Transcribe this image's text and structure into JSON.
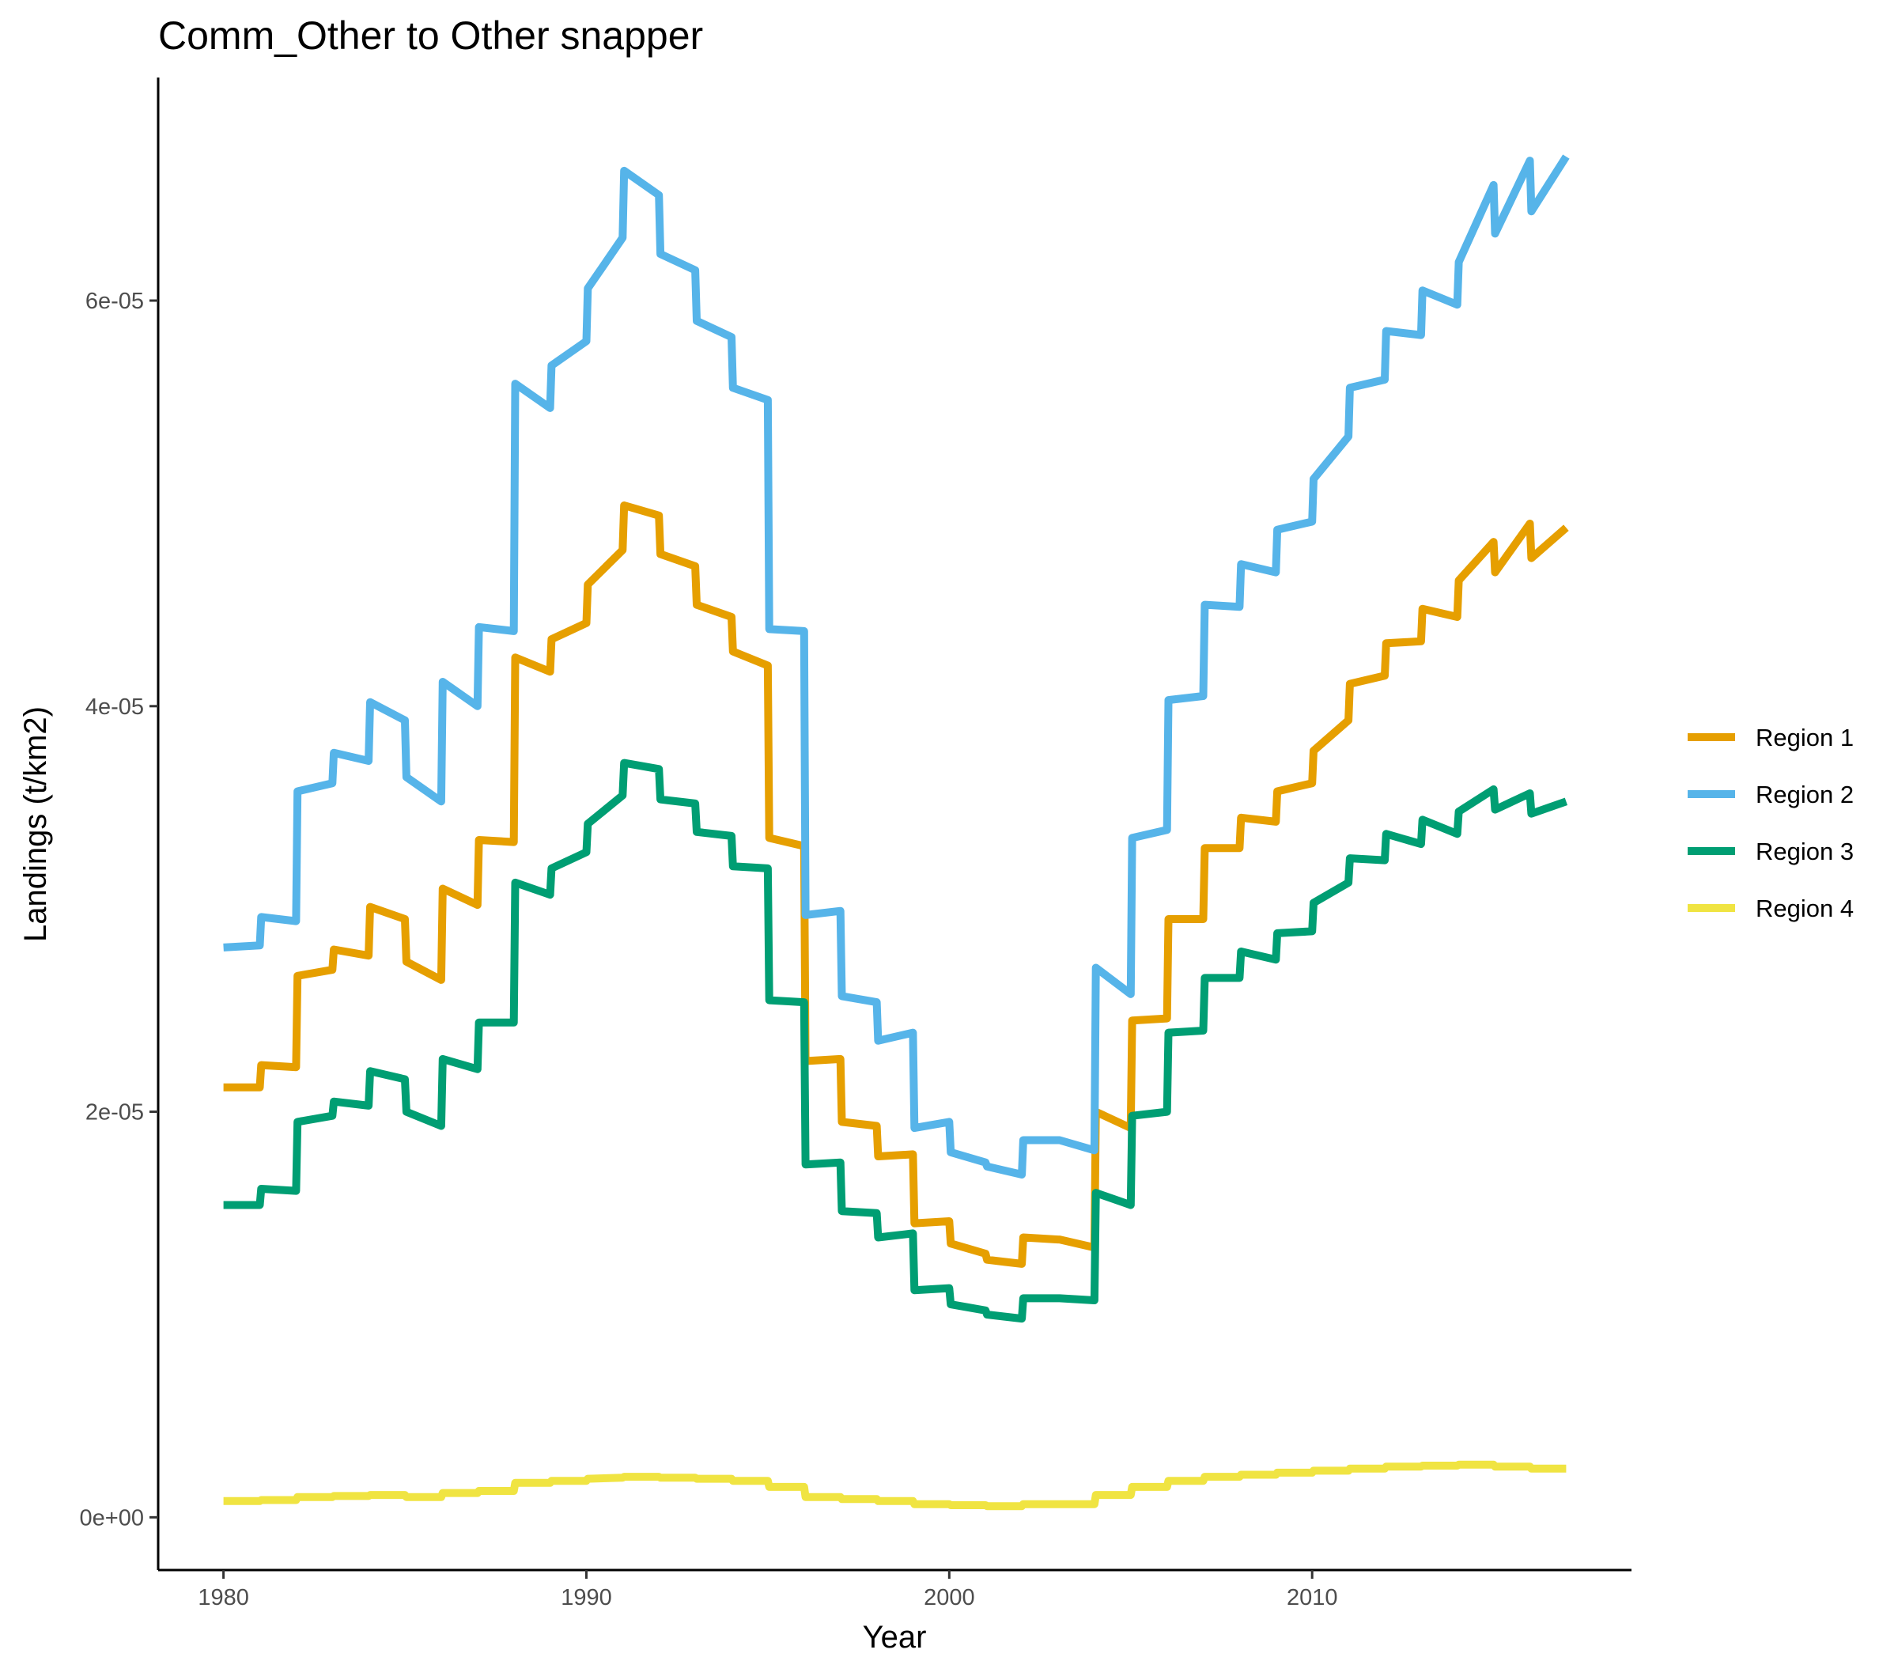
{
  "chart_data": {
    "type": "line",
    "title": "Comm_Other to Other snapper",
    "xlabel": "Year",
    "ylabel": "Landings (t/km2)",
    "xlim": [
      1978.2,
      2018.8
    ],
    "ylim": [
      -2.6e-06,
      7.1e-05
    ],
    "x_ticks": [
      1980,
      1990,
      2000,
      2010
    ],
    "x_tick_labels": [
      "1980",
      "1990",
      "2000",
      "2010"
    ],
    "y_ticks": [
      0,
      2e-05,
      4e-05,
      6e-05
    ],
    "y_tick_labels": [
      "0e+00",
      "2e-05",
      "4e-05",
      "6e-05"
    ],
    "grid": false,
    "legend_position": "right",
    "series": [
      {
        "name": "Region 1",
        "color": "#E69F00",
        "x": [
          1980.0,
          1981.0,
          1981.04,
          1982.0,
          1982.04,
          1983.0,
          1983.04,
          1984.0,
          1984.04,
          1985.0,
          1985.04,
          1986.0,
          1986.04,
          1987.0,
          1987.04,
          1988.0,
          1988.04,
          1989.0,
          1989.04,
          1990.0,
          1990.04,
          1991.0,
          1991.04,
          1992.0,
          1992.04,
          1993.0,
          1993.04,
          1994.0,
          1994.04,
          1995.0,
          1995.04,
          1996.0,
          1996.04,
          1997.0,
          1997.04,
          1998.0,
          1998.04,
          1999.0,
          1999.04,
          2000.0,
          2000.04,
          2001.0,
          2001.04,
          2002.0,
          2002.04,
          2003.0,
          2003.04,
          2004.0,
          2004.04,
          2005.0,
          2005.04,
          2006.0,
          2006.04,
          2007.0,
          2007.04,
          2008.0,
          2008.04,
          2009.0,
          2009.04,
          2010.0,
          2010.04,
          2011.0,
          2011.04,
          2012.0,
          2012.04,
          2013.0,
          2013.04,
          2014.0,
          2014.04,
          2015.0,
          2015.04,
          2016.0,
          2016.04,
          2017.0
        ],
        "y": [
          2.12e-05,
          2.12e-05,
          2.23e-05,
          2.22e-05,
          2.67e-05,
          2.7e-05,
          2.8e-05,
          2.77e-05,
          3.01e-05,
          2.95e-05,
          2.74e-05,
          2.65e-05,
          3.1e-05,
          3.02e-05,
          3.34e-05,
          3.33e-05,
          4.24e-05,
          4.17e-05,
          4.33e-05,
          4.41e-05,
          4.6e-05,
          4.77e-05,
          4.99e-05,
          4.94e-05,
          4.75e-05,
          4.69e-05,
          4.5e-05,
          4.44e-05,
          4.27e-05,
          4.2e-05,
          3.35e-05,
          3.31e-05,
          2.25e-05,
          2.26e-05,
          1.95e-05,
          1.93e-05,
          1.78e-05,
          1.79e-05,
          1.45e-05,
          1.46e-05,
          1.35e-05,
          1.3e-05,
          1.27e-05,
          1.25e-05,
          1.38e-05,
          1.37e-05,
          1.37e-05,
          1.33e-05,
          2e-05,
          1.92e-05,
          2.45e-05,
          2.46e-05,
          2.95e-05,
          2.95e-05,
          3.3e-05,
          3.3e-05,
          3.45e-05,
          3.43e-05,
          3.58e-05,
          3.62e-05,
          3.78e-05,
          3.93e-05,
          4.11e-05,
          4.15e-05,
          4.31e-05,
          4.32e-05,
          4.48e-05,
          4.44e-05,
          4.62e-05,
          4.81e-05,
          4.66e-05,
          4.9e-05,
          4.73e-05,
          4.88e-05
        ]
      },
      {
        "name": "Region 2",
        "color": "#56B4E9",
        "x": [
          1980.0,
          1981.0,
          1981.04,
          1982.0,
          1982.04,
          1983.0,
          1983.04,
          1984.0,
          1984.04,
          1985.0,
          1985.04,
          1986.0,
          1986.04,
          1987.0,
          1987.04,
          1988.0,
          1988.04,
          1989.0,
          1989.04,
          1990.0,
          1990.04,
          1991.0,
          1991.04,
          1992.0,
          1992.04,
          1993.0,
          1993.04,
          1994.0,
          1994.04,
          1995.0,
          1995.04,
          1996.0,
          1996.04,
          1997.0,
          1997.04,
          1998.0,
          1998.04,
          1999.0,
          1999.04,
          2000.0,
          2000.04,
          2001.0,
          2001.04,
          2002.0,
          2002.04,
          2003.0,
          2003.04,
          2004.0,
          2004.04,
          2005.0,
          2005.04,
          2006.0,
          2006.04,
          2007.0,
          2007.04,
          2008.0,
          2008.04,
          2009.0,
          2009.04,
          2010.0,
          2010.04,
          2011.0,
          2011.04,
          2012.0,
          2012.04,
          2013.0,
          2013.04,
          2014.0,
          2014.04,
          2015.0,
          2015.04,
          2016.0,
          2016.04,
          2017.0
        ],
        "y": [
          2.81e-05,
          2.82e-05,
          2.96e-05,
          2.94e-05,
          3.58e-05,
          3.62e-05,
          3.77e-05,
          3.73e-05,
          4.02e-05,
          3.93e-05,
          3.65e-05,
          3.53e-05,
          4.12e-05,
          4e-05,
          4.39e-05,
          4.37e-05,
          5.59e-05,
          5.47e-05,
          5.68e-05,
          5.8e-05,
          6.06e-05,
          6.31e-05,
          6.64e-05,
          6.52e-05,
          6.23e-05,
          6.15e-05,
          5.9e-05,
          5.82e-05,
          5.57e-05,
          5.51e-05,
          4.38e-05,
          4.37e-05,
          2.97e-05,
          2.99e-05,
          2.57e-05,
          2.54e-05,
          2.35e-05,
          2.39e-05,
          1.92e-05,
          1.95e-05,
          1.8e-05,
          1.75e-05,
          1.73e-05,
          1.69e-05,
          1.86e-05,
          1.86e-05,
          1.86e-05,
          1.81e-05,
          2.71e-05,
          2.58e-05,
          3.35e-05,
          3.39e-05,
          4.03e-05,
          4.05e-05,
          4.5e-05,
          4.49e-05,
          4.7e-05,
          4.66e-05,
          4.87e-05,
          4.91e-05,
          5.12e-05,
          5.33e-05,
          5.57e-05,
          5.61e-05,
          5.85e-05,
          5.83e-05,
          6.05e-05,
          5.98e-05,
          6.19e-05,
          6.57e-05,
          6.33e-05,
          6.69e-05,
          6.44e-05,
          6.71e-05
        ]
      },
      {
        "name": "Region 3",
        "color": "#009E73",
        "x": [
          1980.0,
          1981.0,
          1981.04,
          1982.0,
          1982.04,
          1983.0,
          1983.04,
          1984.0,
          1984.04,
          1985.0,
          1985.04,
          1986.0,
          1986.04,
          1987.0,
          1987.04,
          1988.0,
          1988.04,
          1989.0,
          1989.04,
          1990.0,
          1990.04,
          1991.0,
          1991.04,
          1992.0,
          1992.04,
          1993.0,
          1993.04,
          1994.0,
          1994.04,
          1995.0,
          1995.04,
          1996.0,
          1996.04,
          1997.0,
          1997.04,
          1998.0,
          1998.04,
          1999.0,
          1999.04,
          2000.0,
          2000.04,
          2001.0,
          2001.04,
          2002.0,
          2002.04,
          2003.0,
          2003.04,
          2004.0,
          2004.04,
          2005.0,
          2005.04,
          2006.0,
          2006.04,
          2007.0,
          2007.04,
          2008.0,
          2008.04,
          2009.0,
          2009.04,
          2010.0,
          2010.04,
          2011.0,
          2011.04,
          2012.0,
          2012.04,
          2013.0,
          2013.04,
          2014.0,
          2014.04,
          2015.0,
          2015.04,
          2016.0,
          2016.04,
          2017.0
        ],
        "y": [
          1.54e-05,
          1.54e-05,
          1.62e-05,
          1.61e-05,
          1.95e-05,
          1.98e-05,
          2.05e-05,
          2.03e-05,
          2.2e-05,
          2.16e-05,
          2e-05,
          1.93e-05,
          2.26e-05,
          2.21e-05,
          2.44e-05,
          2.44e-05,
          3.13e-05,
          3.07e-05,
          3.2e-05,
          3.28e-05,
          3.42e-05,
          3.56e-05,
          3.72e-05,
          3.69e-05,
          3.54e-05,
          3.52e-05,
          3.38e-05,
          3.36e-05,
          3.21e-05,
          3.2e-05,
          2.55e-05,
          2.54e-05,
          1.74e-05,
          1.75e-05,
          1.51e-05,
          1.5e-05,
          1.38e-05,
          1.4e-05,
          1.12e-05,
          1.13e-05,
          1.05e-05,
          1.02e-05,
          1e-05,
          9.8e-06,
          1.08e-05,
          1.08e-05,
          1.08e-05,
          1.07e-05,
          1.6e-05,
          1.54e-05,
          1.98e-05,
          2e-05,
          2.39e-05,
          2.4e-05,
          2.66e-05,
          2.66e-05,
          2.79e-05,
          2.75e-05,
          2.88e-05,
          2.89e-05,
          3.03e-05,
          3.13e-05,
          3.25e-05,
          3.24e-05,
          3.37e-05,
          3.32e-05,
          3.44e-05,
          3.37e-05,
          3.48e-05,
          3.59e-05,
          3.49e-05,
          3.57e-05,
          3.47e-05,
          3.53e-05
        ]
      },
      {
        "name": "Region 4",
        "color": "#F0E442",
        "x": [
          1980.0,
          1981.0,
          1981.04,
          1982.0,
          1982.04,
          1983.0,
          1983.04,
          1984.0,
          1984.04,
          1985.0,
          1985.04,
          1986.0,
          1986.04,
          1987.0,
          1987.04,
          1988.0,
          1988.04,
          1989.0,
          1989.04,
          1990.0,
          1990.04,
          1991.0,
          1991.04,
          1992.0,
          1992.04,
          1993.0,
          1993.04,
          1994.0,
          1994.04,
          1995.0,
          1995.04,
          1996.0,
          1996.04,
          1997.0,
          1997.04,
          1998.0,
          1998.04,
          1999.0,
          1999.04,
          2000.0,
          2000.04,
          2001.0,
          2001.04,
          2002.0,
          2002.04,
          2003.0,
          2003.04,
          2004.0,
          2004.04,
          2005.0,
          2005.04,
          2006.0,
          2006.04,
          2007.0,
          2007.04,
          2008.0,
          2008.04,
          2009.0,
          2009.04,
          2010.0,
          2010.04,
          2011.0,
          2011.04,
          2012.0,
          2012.04,
          2013.0,
          2013.04,
          2014.0,
          2014.04,
          2015.0,
          2015.04,
          2016.0,
          2016.04,
          2017.0
        ],
        "y": [
          8e-07,
          8e-07,
          8.5e-07,
          8.5e-07,
          1e-06,
          1e-06,
          1.05e-06,
          1.05e-06,
          1.1e-06,
          1.1e-06,
          1e-06,
          1e-06,
          1.2e-06,
          1.2e-06,
          1.3e-06,
          1.3e-06,
          1.7e-06,
          1.7e-06,
          1.8e-06,
          1.8e-06,
          1.9e-06,
          1.95e-06,
          2e-06,
          2e-06,
          1.95e-06,
          1.95e-06,
          1.9e-06,
          1.9e-06,
          1.8e-06,
          1.8e-06,
          1.5e-06,
          1.5e-06,
          1e-06,
          1e-06,
          9e-07,
          9e-07,
          8e-07,
          8e-07,
          6.5e-07,
          6.5e-07,
          6e-07,
          6e-07,
          5.5e-07,
          5.5e-07,
          6.5e-07,
          6.5e-07,
          6.5e-07,
          6.5e-07,
          1.1e-06,
          1.1e-06,
          1.5e-06,
          1.5e-06,
          1.8e-06,
          1.8e-06,
          2e-06,
          2e-06,
          2.1e-06,
          2.1e-06,
          2.2e-06,
          2.2e-06,
          2.3e-06,
          2.3e-06,
          2.4e-06,
          2.4e-06,
          2.5e-06,
          2.5e-06,
          2.55e-06,
          2.55e-06,
          2.6e-06,
          2.6e-06,
          2.5e-06,
          2.5e-06,
          2.4e-06,
          2.4e-06
        ]
      }
    ]
  }
}
